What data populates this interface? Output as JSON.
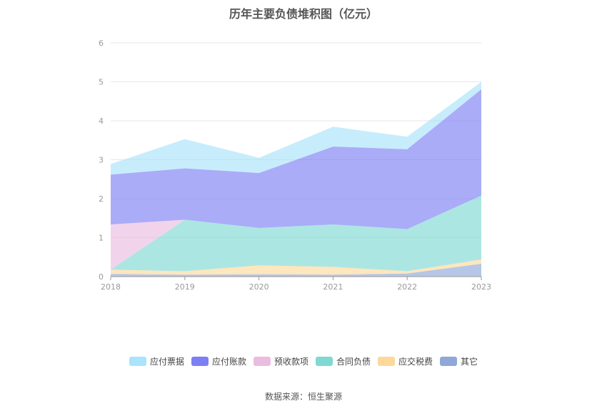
{
  "chart_data": {
    "type": "area",
    "stacked": true,
    "title": "历年主要负债堆积图（亿元）",
    "source": "数据来源：恒生聚源",
    "x": [
      "2018",
      "2019",
      "2020",
      "2021",
      "2022",
      "2023"
    ],
    "ylim": [
      0,
      6
    ],
    "yticks": [
      0,
      1,
      2,
      3,
      4,
      5,
      6
    ],
    "grid": true,
    "legend_position": "bottom",
    "series": [
      {
        "name": "其它",
        "color": "#8fa8d8",
        "values": [
          0.07,
          0.05,
          0.06,
          0.05,
          0.08,
          0.33
        ]
      },
      {
        "name": "应交税费",
        "color": "#fdd999",
        "values": [
          0.11,
          0.09,
          0.23,
          0.2,
          0.06,
          0.11
        ]
      },
      {
        "name": "合同负债",
        "color": "#7fd9d2",
        "values": [
          0.0,
          1.32,
          0.96,
          1.09,
          1.08,
          1.64
        ]
      },
      {
        "name": "预收款项",
        "color": "#eabde0",
        "values": [
          1.16,
          0.0,
          0.0,
          0.0,
          0.0,
          0.0
        ]
      },
      {
        "name": "应付账款",
        "color": "#7c7ff5",
        "values": [
          1.28,
          1.32,
          1.41,
          2.0,
          2.05,
          2.73
        ]
      },
      {
        "name": "应付票据",
        "color": "#a9e4fb",
        "values": [
          0.27,
          0.75,
          0.39,
          0.51,
          0.32,
          0.19
        ]
      }
    ],
    "legend_order": [
      "应付票据",
      "应付账款",
      "预收款项",
      "合同负债",
      "应交税费",
      "其它"
    ]
  }
}
